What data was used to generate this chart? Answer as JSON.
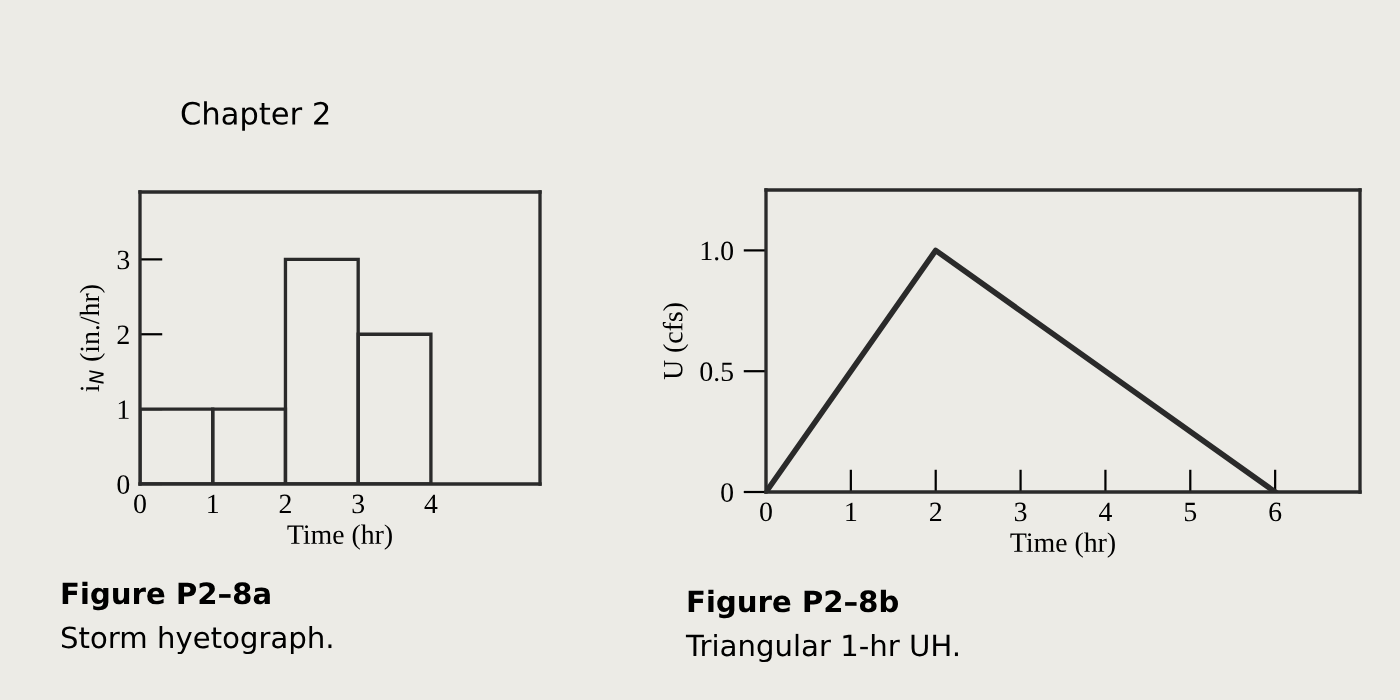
{
  "chart_data": [
    {
      "type": "histogram",
      "title": "Chapter 2",
      "xlabel": "Time (hr)",
      "ylabel": "i$_{N}$ (in./hr)",
      "bins": [
        0,
        1,
        2,
        3,
        4
      ],
      "values": [
        1,
        1,
        3,
        2
      ],
      "color": "#2a2a2a",
      "xlim": [
        0,
        5.5
      ],
      "xticks": [
        0,
        1,
        2,
        3,
        4
      ],
      "ylim": [
        0,
        3.9
      ],
      "yticks": [
        0,
        1,
        2,
        3
      ],
      "grid": false,
      "legend": false,
      "annotations": [
        "Figure P2–8a",
        "Storm hyetograph."
      ]
    },
    {
      "type": "line",
      "xlabel": "Time (hr)",
      "ylabel": "U (cfs)",
      "x": [
        0,
        2,
        6
      ],
      "values": [
        0,
        1,
        0
      ],
      "color": "#2a2a2a",
      "marker": "none",
      "line_style": "solid",
      "xlim": [
        0,
        7
      ],
      "xticks": [
        0,
        1,
        2,
        3,
        4,
        5,
        6
      ],
      "ylim": [
        0,
        1.25
      ],
      "yticks": [
        0,
        0.5,
        {
          "value": 1,
          "label": "1.0"
        }
      ],
      "grid": false,
      "legend": false,
      "annotations": [
        "Figure P2–8b",
        "Triangular 1-hr UH."
      ]
    }
  ]
}
